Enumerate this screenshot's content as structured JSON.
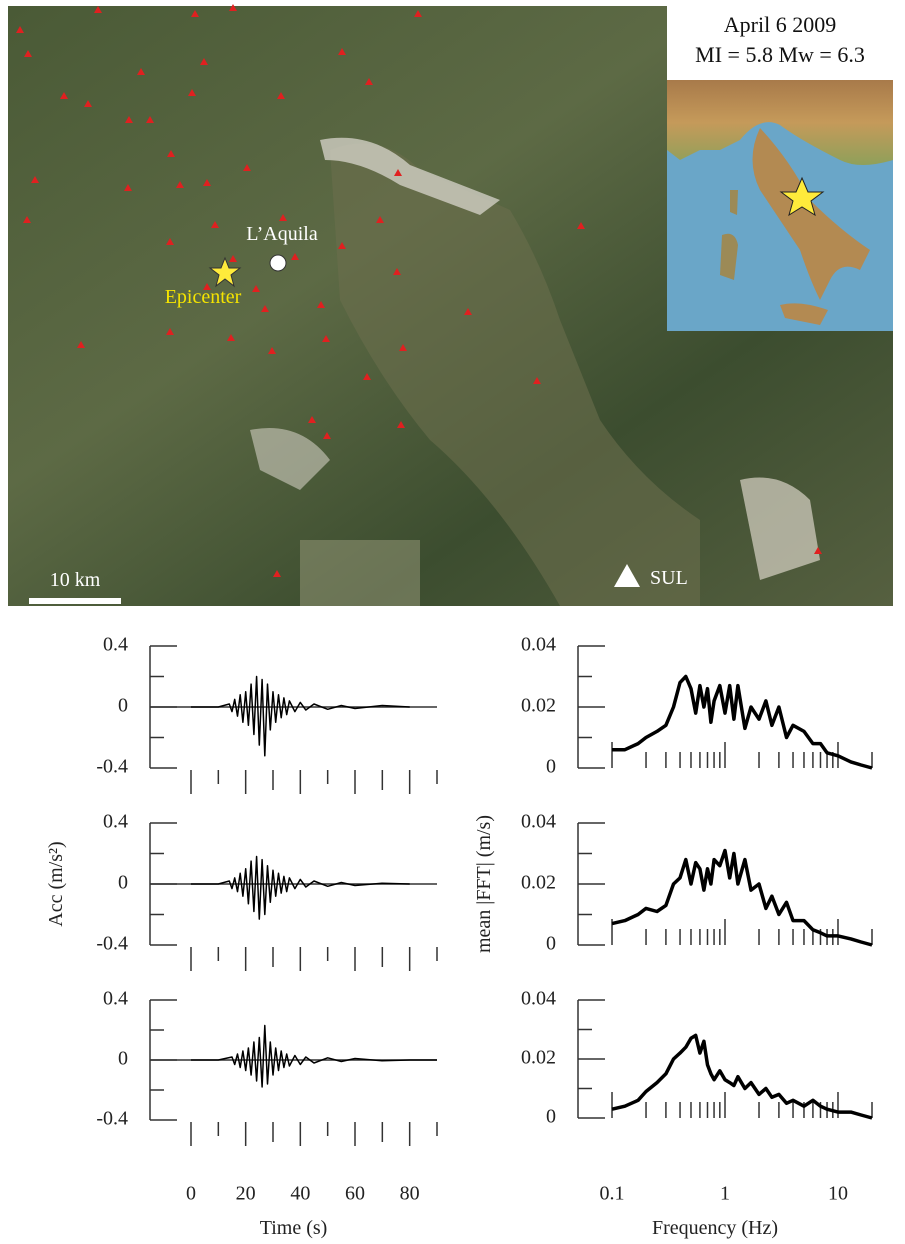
{
  "map": {
    "title": "April 6 2009",
    "magnitude": "MI = 5.8 Mw = 6.3",
    "city": "L’Aquila",
    "epicenter": "Epicenter",
    "scale": "10 km",
    "station": "SUL"
  },
  "chart_data": [
    {
      "type": "line",
      "color": "#000000",
      "xlim": [
        -15,
        90
      ],
      "ylim": [
        -0.4,
        0.4
      ],
      "yticks": [
        0.4,
        0,
        -0.4
      ],
      "yminorticks": [
        0.2,
        -0.2
      ],
      "xticks": [
        0,
        20,
        40,
        60,
        80
      ],
      "xminorticks": [
        10,
        30,
        50,
        70,
        90
      ],
      "show_xticklabels": false,
      "x": [
        0,
        10,
        14,
        15,
        16,
        17,
        18,
        19,
        20,
        21,
        22,
        23,
        24,
        25,
        26,
        27,
        28,
        29,
        30,
        31,
        32,
        33,
        34,
        35,
        36,
        38,
        40,
        42,
        45,
        50,
        55,
        60,
        70,
        80
      ],
      "values": [
        0,
        0,
        0.02,
        -0.03,
        0.05,
        -0.06,
        0.08,
        -0.1,
        0.1,
        -0.12,
        0.15,
        -0.18,
        0.2,
        -0.25,
        0.18,
        -0.32,
        0.15,
        -0.15,
        0.1,
        -0.1,
        0.08,
        -0.07,
        0.06,
        -0.05,
        0.04,
        -0.03,
        0.03,
        -0.02,
        0.02,
        -0.015,
        0.01,
        -0.01,
        0.01,
        0
      ]
    },
    {
      "type": "line",
      "color": "#000000",
      "xlim": [
        -15,
        90
      ],
      "ylim": [
        -0.4,
        0.4
      ],
      "yticks": [
        0.4,
        0,
        -0.4
      ],
      "yminorticks": [
        0.2,
        -0.2
      ],
      "xticks": [
        0,
        20,
        40,
        60,
        80
      ],
      "xminorticks": [
        10,
        30,
        50,
        70,
        90
      ],
      "show_xticklabels": false,
      "ylabel": "Acc (m/s²)",
      "x": [
        0,
        10,
        14,
        15,
        16,
        17,
        18,
        19,
        20,
        21,
        22,
        23,
        24,
        25,
        26,
        27,
        28,
        29,
        30,
        31,
        32,
        33,
        34,
        35,
        36,
        38,
        40,
        42,
        45,
        50,
        55,
        60,
        70,
        80
      ],
      "values": [
        0,
        0,
        0.02,
        -0.03,
        0.04,
        -0.05,
        0.07,
        -0.08,
        0.1,
        -0.13,
        0.15,
        -0.18,
        0.18,
        -0.23,
        0.16,
        -0.2,
        0.12,
        -0.12,
        0.09,
        -0.08,
        0.07,
        -0.06,
        0.05,
        -0.05,
        0.04,
        -0.03,
        0.03,
        -0.02,
        0.02,
        -0.015,
        0.01,
        -0.01,
        0.005,
        0
      ]
    },
    {
      "type": "line",
      "color": "#000000",
      "xlim": [
        -15,
        90
      ],
      "ylim": [
        -0.4,
        0.4
      ],
      "yticks": [
        0.4,
        0,
        -0.4
      ],
      "yminorticks": [
        0.2,
        -0.2
      ],
      "xticks": [
        0,
        20,
        40,
        60,
        80
      ],
      "xminorticks": [
        10,
        30,
        50,
        70,
        90
      ],
      "show_xticklabels": true,
      "xlabel": "Time (s)",
      "x": [
        0,
        10,
        15,
        16,
        17,
        18,
        19,
        20,
        21,
        22,
        23,
        24,
        25,
        26,
        27,
        28,
        29,
        30,
        31,
        32,
        33,
        34,
        35,
        36,
        38,
        40,
        42,
        45,
        50,
        55,
        60,
        70,
        80,
        90
      ],
      "values": [
        0,
        0,
        0.02,
        -0.03,
        0.04,
        -0.05,
        0.06,
        -0.07,
        0.08,
        -0.1,
        0.12,
        -0.14,
        0.15,
        -0.18,
        0.23,
        -0.16,
        0.12,
        -0.1,
        0.08,
        -0.07,
        0.06,
        -0.05,
        0.04,
        -0.04,
        0.03,
        -0.03,
        0.02,
        -0.02,
        0.015,
        -0.01,
        0.01,
        -0.005,
        0,
        0
      ]
    },
    {
      "type": "line",
      "color": "#000000",
      "log_x": true,
      "xlim": [
        0.05,
        20
      ],
      "ylim": [
        0,
        0.04
      ],
      "yticks": [
        0.04,
        0.02,
        0
      ],
      "yminorticks": [
        0.03,
        0.01
      ],
      "xticks": [
        0.1,
        1,
        10
      ],
      "xminorticks": [
        0.2,
        0.3,
        0.4,
        0.5,
        0.6,
        0.7,
        0.8,
        0.9,
        2,
        3,
        4,
        5,
        6,
        7,
        8,
        9,
        20
      ],
      "show_xticklabels": false,
      "x": [
        0.1,
        0.13,
        0.17,
        0.2,
        0.25,
        0.3,
        0.35,
        0.4,
        0.45,
        0.5,
        0.55,
        0.6,
        0.65,
        0.7,
        0.75,
        0.8,
        0.9,
        1,
        1.1,
        1.2,
        1.3,
        1.5,
        1.7,
        2,
        2.3,
        2.6,
        3,
        3.5,
        4,
        5,
        6,
        7,
        8,
        10,
        13,
        16,
        20
      ],
      "values": [
        0.006,
        0.006,
        0.008,
        0.01,
        0.012,
        0.014,
        0.02,
        0.028,
        0.03,
        0.026,
        0.018,
        0.027,
        0.02,
        0.026,
        0.015,
        0.022,
        0.027,
        0.018,
        0.027,
        0.016,
        0.027,
        0.013,
        0.02,
        0.016,
        0.022,
        0.014,
        0.02,
        0.01,
        0.014,
        0.012,
        0.008,
        0.008,
        0.005,
        0.004,
        0.002,
        0.001,
        0
      ]
    },
    {
      "type": "line",
      "color": "#000000",
      "log_x": true,
      "xlim": [
        0.05,
        20
      ],
      "ylim": [
        0,
        0.04
      ],
      "yticks": [
        0.04,
        0.02,
        0
      ],
      "yminorticks": [
        0.03,
        0.01
      ],
      "xticks": [
        0.1,
        1,
        10
      ],
      "xminorticks": [
        0.2,
        0.3,
        0.4,
        0.5,
        0.6,
        0.7,
        0.8,
        0.9,
        2,
        3,
        4,
        5,
        6,
        7,
        8,
        9,
        20
      ],
      "show_xticklabels": false,
      "ylabel": "mean |FFT| (m/s)",
      "x": [
        0.1,
        0.13,
        0.17,
        0.2,
        0.25,
        0.3,
        0.35,
        0.4,
        0.45,
        0.5,
        0.55,
        0.6,
        0.65,
        0.7,
        0.75,
        0.8,
        0.9,
        1,
        1.1,
        1.2,
        1.3,
        1.5,
        1.7,
        2,
        2.3,
        2.6,
        3,
        3.5,
        4,
        5,
        6,
        7,
        8,
        10,
        13,
        16,
        20
      ],
      "values": [
        0.007,
        0.008,
        0.01,
        0.012,
        0.011,
        0.013,
        0.02,
        0.022,
        0.028,
        0.02,
        0.027,
        0.025,
        0.018,
        0.025,
        0.02,
        0.028,
        0.026,
        0.031,
        0.022,
        0.03,
        0.02,
        0.028,
        0.018,
        0.02,
        0.012,
        0.016,
        0.01,
        0.014,
        0.008,
        0.008,
        0.005,
        0.004,
        0.003,
        0.003,
        0.002,
        0.001,
        0
      ]
    },
    {
      "type": "line",
      "color": "#000000",
      "log_x": true,
      "xlim": [
        0.05,
        20
      ],
      "ylim": [
        0,
        0.04
      ],
      "yticks": [
        0.04,
        0.02,
        0
      ],
      "yminorticks": [
        0.03,
        0.01
      ],
      "xticks": [
        0.1,
        1,
        10
      ],
      "xminorticks": [
        0.2,
        0.3,
        0.4,
        0.5,
        0.6,
        0.7,
        0.8,
        0.9,
        2,
        3,
        4,
        5,
        6,
        7,
        8,
        9,
        20
      ],
      "show_xticklabels": true,
      "xlabel": "Frequency (Hz)",
      "x": [
        0.1,
        0.13,
        0.17,
        0.2,
        0.25,
        0.3,
        0.35,
        0.4,
        0.45,
        0.5,
        0.55,
        0.6,
        0.65,
        0.7,
        0.75,
        0.8,
        0.9,
        1,
        1.1,
        1.2,
        1.3,
        1.5,
        1.7,
        2,
        2.3,
        2.6,
        3,
        3.5,
        4,
        5,
        6,
        7,
        8,
        10,
        13,
        16,
        20
      ],
      "values": [
        0.003,
        0.004,
        0.006,
        0.009,
        0.012,
        0.015,
        0.02,
        0.022,
        0.024,
        0.027,
        0.028,
        0.022,
        0.026,
        0.018,
        0.015,
        0.013,
        0.016,
        0.013,
        0.012,
        0.011,
        0.014,
        0.01,
        0.012,
        0.008,
        0.01,
        0.007,
        0.008,
        0.005,
        0.006,
        0.004,
        0.006,
        0.004,
        0.003,
        0.002,
        0.002,
        0.001,
        0
      ]
    }
  ]
}
